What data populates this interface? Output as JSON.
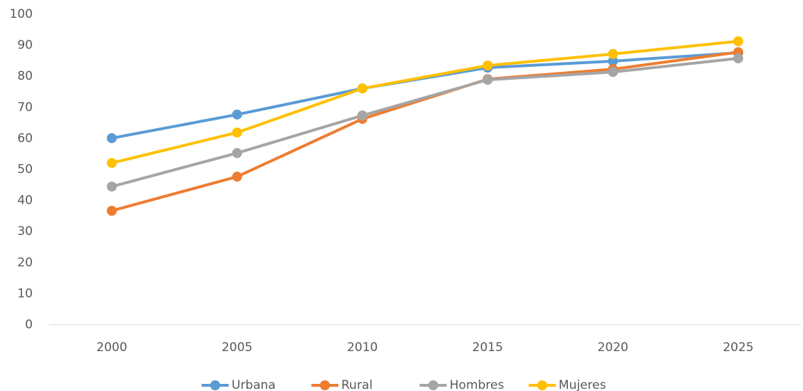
{
  "chart_data": {
    "type": "line",
    "categories": [
      "2000",
      "2005",
      "2010",
      "2015",
      "2020",
      "2025"
    ],
    "series": [
      {
        "name": "Urbana",
        "color": "#5b9bd5",
        "values": [
          60.1,
          67.7,
          76.1,
          82.8,
          84.9,
          87.6
        ]
      },
      {
        "name": "Rural",
        "color": "#ed7d31",
        "values": [
          36.7,
          47.7,
          66.3,
          79.1,
          82.3,
          87.8
        ]
      },
      {
        "name": "Hombres",
        "color": "#a5a5a5",
        "values": [
          44.5,
          55.3,
          67.4,
          78.9,
          81.4,
          85.8
        ]
      },
      {
        "name": "Mujeres",
        "color": "#ffc000",
        "values": [
          52.1,
          61.9,
          76.1,
          83.5,
          87.2,
          91.3
        ]
      }
    ],
    "ylim": [
      0,
      100
    ],
    "yticks": [
      0,
      10,
      20,
      30,
      40,
      50,
      60,
      70,
      80,
      90,
      100
    ],
    "grid": false,
    "legend": "bottom"
  }
}
